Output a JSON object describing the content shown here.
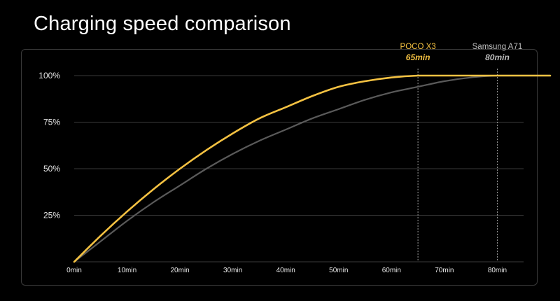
{
  "page": {
    "title": "Charging speed comparison"
  },
  "colors": {
    "background": "#000000",
    "poco": "#f5c242",
    "samsung": "#5a5a5a",
    "samsung_label": "#bdbdbd",
    "grid": "#3a3a3a",
    "frame": "#3a3a3a"
  },
  "chart_data": {
    "type": "line",
    "title": "Charging speed comparison",
    "xlabel": "",
    "ylabel": "",
    "xlim": [
      0,
      90
    ],
    "ylim": [
      0,
      100
    ],
    "x_ticks": [
      0,
      10,
      20,
      30,
      40,
      50,
      60,
      70,
      80
    ],
    "x_tick_labels": [
      "0min",
      "10min",
      "20min",
      "30min",
      "40min",
      "50min",
      "60min",
      "70min",
      "80min"
    ],
    "y_ticks": [
      25,
      50,
      75,
      100
    ],
    "y_tick_labels": [
      "25%",
      "50%",
      "75%",
      "100%"
    ],
    "grid": "horizontal",
    "series": [
      {
        "name": "POCO X3",
        "color": "#f5c242",
        "x": [
          0,
          5,
          10,
          15,
          20,
          25,
          30,
          35,
          40,
          45,
          50,
          55,
          60,
          65,
          70,
          80,
          90
        ],
        "y": [
          0,
          14,
          27,
          39,
          50,
          60,
          69,
          77,
          83,
          89,
          94,
          97,
          99,
          100,
          100,
          100,
          100
        ]
      },
      {
        "name": "Samsung A71",
        "color": "#5a5a5a",
        "x": [
          0,
          5,
          10,
          15,
          20,
          25,
          30,
          35,
          40,
          45,
          50,
          55,
          60,
          65,
          70,
          75,
          80,
          90
        ],
        "y": [
          0,
          11,
          22,
          32,
          41,
          50,
          58,
          65,
          71,
          77,
          82,
          87,
          91,
          94,
          97,
          99,
          100,
          100
        ]
      }
    ],
    "markers": [
      {
        "series": "POCO X3",
        "name": "POCO X3",
        "x": 65,
        "time_label": "65min",
        "color": "#f5c242"
      },
      {
        "series": "Samsung A71",
        "name": "Samsung A71",
        "x": 80,
        "time_label": "80min",
        "color": "#bdbdbd"
      }
    ]
  }
}
